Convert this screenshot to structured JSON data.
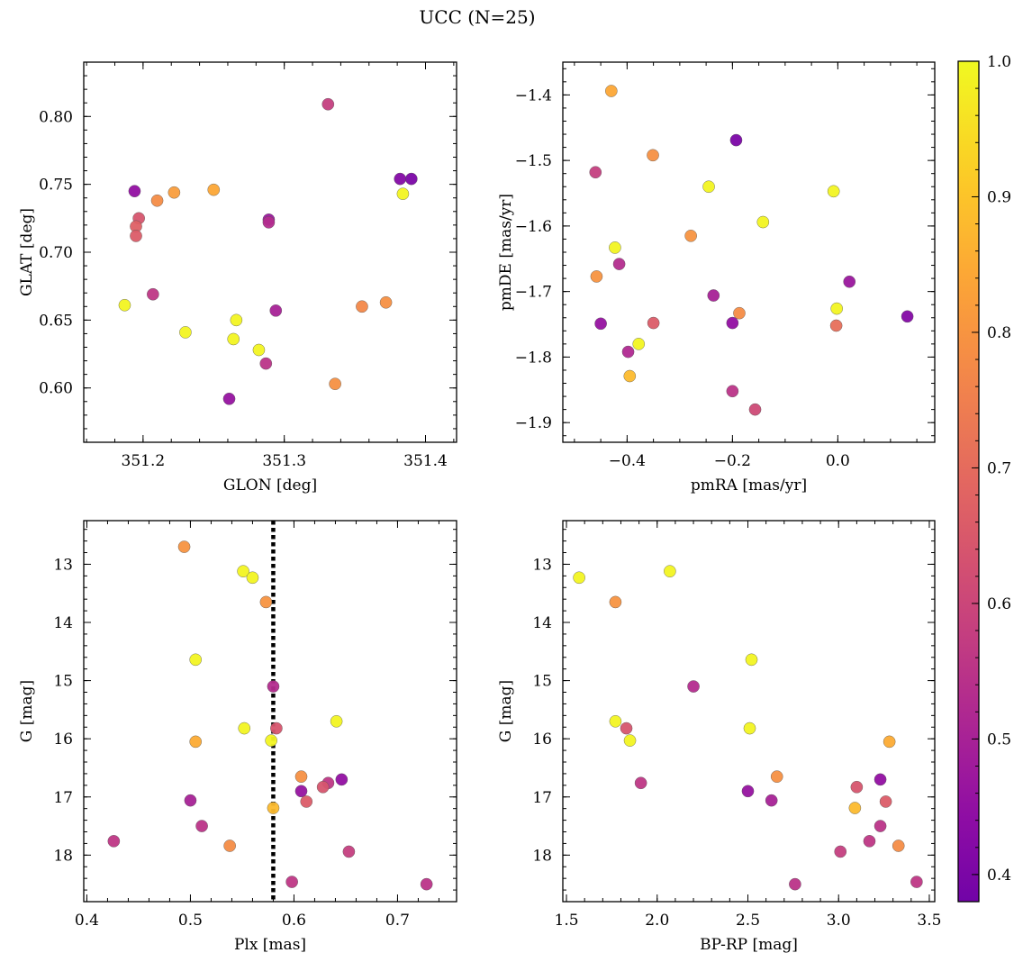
{
  "figure": {
    "suptitle": "UCC (N=25)"
  },
  "chart_data": [
    {
      "type": "scatter",
      "id": "ax1",
      "xlabel": "GLON [deg]",
      "ylabel": "GLAT [deg]",
      "xlim": [
        351.158,
        351.422
      ],
      "ylim": [
        0.56,
        0.84
      ],
      "xticks": [
        351.2,
        351.3,
        351.4
      ],
      "xtick_labels": [
        "351.2",
        "351.3",
        "351.4"
      ],
      "yticks": [
        0.6,
        0.65,
        0.7,
        0.75,
        0.8
      ],
      "ytick_labels": [
        "0.60",
        "0.65",
        "0.70",
        "0.75",
        "0.80"
      ],
      "x_minor_step": 0.02,
      "y_minor_step": 0.01,
      "y_inverted": false,
      "points": [
        {
          "x": 351.331,
          "y": 0.809,
          "c": 0.58
        },
        {
          "x": 351.382,
          "y": 0.754,
          "c": 0.42
        },
        {
          "x": 351.39,
          "y": 0.754,
          "c": 0.4
        },
        {
          "x": 351.384,
          "y": 0.743,
          "c": 0.99
        },
        {
          "x": 351.194,
          "y": 0.745,
          "c": 0.45
        },
        {
          "x": 351.25,
          "y": 0.746,
          "c": 0.84
        },
        {
          "x": 351.222,
          "y": 0.744,
          "c": 0.82
        },
        {
          "x": 351.21,
          "y": 0.738,
          "c": 0.78
        },
        {
          "x": 351.197,
          "y": 0.725,
          "c": 0.64
        },
        {
          "x": 351.289,
          "y": 0.724,
          "c": 0.47
        },
        {
          "x": 351.289,
          "y": 0.722,
          "c": 0.53
        },
        {
          "x": 351.195,
          "y": 0.719,
          "c": 0.67
        },
        {
          "x": 351.195,
          "y": 0.712,
          "c": 0.66
        },
        {
          "x": 351.207,
          "y": 0.669,
          "c": 0.56
        },
        {
          "x": 351.187,
          "y": 0.661,
          "c": 0.99
        },
        {
          "x": 351.372,
          "y": 0.663,
          "c": 0.79
        },
        {
          "x": 351.355,
          "y": 0.66,
          "c": 0.77
        },
        {
          "x": 351.294,
          "y": 0.657,
          "c": 0.5
        },
        {
          "x": 351.266,
          "y": 0.65,
          "c": 0.99
        },
        {
          "x": 351.23,
          "y": 0.641,
          "c": 0.99
        },
        {
          "x": 351.264,
          "y": 0.636,
          "c": 0.99
        },
        {
          "x": 351.282,
          "y": 0.628,
          "c": 0.99
        },
        {
          "x": 351.287,
          "y": 0.618,
          "c": 0.55
        },
        {
          "x": 351.336,
          "y": 0.603,
          "c": 0.79
        },
        {
          "x": 351.261,
          "y": 0.592,
          "c": 0.46
        }
      ]
    },
    {
      "type": "scatter",
      "id": "ax2",
      "xlabel": "pmRA [mas/yr]",
      "ylabel": "pmDE [mas/yr]",
      "xlim": [
        -0.522,
        0.184
      ],
      "ylim": [
        -1.93,
        -1.35
      ],
      "xticks": [
        -0.4,
        -0.2,
        0.0
      ],
      "xtick_labels": [
        "−0.4",
        "−0.2",
        "0.0"
      ],
      "yticks": [
        -1.9,
        -1.8,
        -1.7,
        -1.6,
        -1.5,
        -1.4
      ],
      "ytick_labels": [
        "−1.9",
        "−1.8",
        "−1.7",
        "−1.6",
        "−1.5",
        "−1.4"
      ],
      "x_minor_step": 0.05,
      "y_minor_step": 0.02,
      "y_inverted": false,
      "points": [
        {
          "x": -0.43,
          "y": -1.394,
          "c": 0.84
        },
        {
          "x": -0.193,
          "y": -1.469,
          "c": 0.4
        },
        {
          "x": -0.351,
          "y": -1.492,
          "c": 0.79
        },
        {
          "x": -0.46,
          "y": -1.518,
          "c": 0.58
        },
        {
          "x": -0.245,
          "y": -1.54,
          "c": 0.99
        },
        {
          "x": -0.008,
          "y": -1.547,
          "c": 0.99
        },
        {
          "x": -0.142,
          "y": -1.594,
          "c": 0.99
        },
        {
          "x": -0.279,
          "y": -1.615,
          "c": 0.8
        },
        {
          "x": -0.423,
          "y": -1.633,
          "c": 0.99
        },
        {
          "x": -0.415,
          "y": -1.658,
          "c": 0.53
        },
        {
          "x": -0.458,
          "y": -1.677,
          "c": 0.8
        },
        {
          "x": 0.022,
          "y": -1.685,
          "c": 0.47
        },
        {
          "x": -0.236,
          "y": -1.706,
          "c": 0.5
        },
        {
          "x": -0.002,
          "y": -1.726,
          "c": 0.99
        },
        {
          "x": -0.187,
          "y": -1.733,
          "c": 0.78
        },
        {
          "x": 0.132,
          "y": -1.738,
          "c": 0.42
        },
        {
          "x": -0.45,
          "y": -1.749,
          "c": 0.46
        },
        {
          "x": -0.35,
          "y": -1.748,
          "c": 0.66
        },
        {
          "x": -0.2,
          "y": -1.748,
          "c": 0.45
        },
        {
          "x": -0.003,
          "y": -1.752,
          "c": 0.71
        },
        {
          "x": -0.378,
          "y": -1.78,
          "c": 0.99
        },
        {
          "x": -0.398,
          "y": -1.792,
          "c": 0.52
        },
        {
          "x": -0.395,
          "y": -1.829,
          "c": 0.88
        },
        {
          "x": -0.2,
          "y": -1.852,
          "c": 0.55
        },
        {
          "x": -0.157,
          "y": -1.88,
          "c": 0.61
        }
      ]
    },
    {
      "type": "scatter",
      "id": "ax3",
      "xlabel": "Plx [mas]",
      "ylabel": "G [mag]",
      "xlim": [
        0.397,
        0.757
      ],
      "ylim": [
        18.8,
        12.25
      ],
      "xticks": [
        0.4,
        0.5,
        0.6,
        0.7
      ],
      "xtick_labels": [
        "0.4",
        "0.5",
        "0.6",
        "0.7"
      ],
      "yticks": [
        13,
        14,
        15,
        16,
        17,
        18
      ],
      "ytick_labels": [
        "13",
        "14",
        "15",
        "16",
        "17",
        "18"
      ],
      "x_minor_step": 0.02,
      "y_minor_step": 0.2,
      "y_inverted": true,
      "vline": {
        "x": 0.58,
        "style": "dotted"
      },
      "points": [
        {
          "x": 0.494,
          "y": 12.7,
          "c": 0.8
        },
        {
          "x": 0.551,
          "y": 13.12,
          "c": 0.99
        },
        {
          "x": 0.56,
          "y": 13.23,
          "c": 0.99
        },
        {
          "x": 0.573,
          "y": 13.65,
          "c": 0.8
        },
        {
          "x": 0.505,
          "y": 14.64,
          "c": 0.99
        },
        {
          "x": 0.58,
          "y": 15.1,
          "c": 0.53
        },
        {
          "x": 0.641,
          "y": 15.7,
          "c": 0.99
        },
        {
          "x": 0.552,
          "y": 15.82,
          "c": 0.99
        },
        {
          "x": 0.583,
          "y": 15.82,
          "c": 0.64
        },
        {
          "x": 0.505,
          "y": 16.05,
          "c": 0.85
        },
        {
          "x": 0.578,
          "y": 16.03,
          "c": 0.99
        },
        {
          "x": 0.607,
          "y": 16.65,
          "c": 0.79
        },
        {
          "x": 0.646,
          "y": 16.7,
          "c": 0.45
        },
        {
          "x": 0.633,
          "y": 16.76,
          "c": 0.56
        },
        {
          "x": 0.628,
          "y": 16.83,
          "c": 0.64
        },
        {
          "x": 0.607,
          "y": 16.9,
          "c": 0.46
        },
        {
          "x": 0.5,
          "y": 17.06,
          "c": 0.5
        },
        {
          "x": 0.612,
          "y": 17.08,
          "c": 0.66
        },
        {
          "x": 0.58,
          "y": 17.19,
          "c": 0.88
        },
        {
          "x": 0.511,
          "y": 17.5,
          "c": 0.55
        },
        {
          "x": 0.426,
          "y": 17.76,
          "c": 0.56
        },
        {
          "x": 0.538,
          "y": 17.84,
          "c": 0.78
        },
        {
          "x": 0.653,
          "y": 17.94,
          "c": 0.58
        },
        {
          "x": 0.598,
          "y": 18.46,
          "c": 0.56
        },
        {
          "x": 0.728,
          "y": 18.5,
          "c": 0.55
        }
      ]
    },
    {
      "type": "scatter",
      "id": "ax4",
      "xlabel": "BP-RP [mag]",
      "ylabel": "G [mag]",
      "xlim": [
        1.48,
        3.53
      ],
      "ylim": [
        18.8,
        12.25
      ],
      "xticks": [
        1.5,
        2.0,
        2.5,
        3.0,
        3.5
      ],
      "xtick_labels": [
        "1.5",
        "2.0",
        "2.5",
        "3.0",
        "3.5"
      ],
      "yticks": [
        13,
        14,
        15,
        16,
        17,
        18
      ],
      "ytick_labels": [
        "13",
        "14",
        "15",
        "16",
        "17",
        "18"
      ],
      "x_minor_step": 0.1,
      "y_minor_step": 0.2,
      "y_inverted": true,
      "points": [
        {
          "x": 1.57,
          "y": 13.23,
          "c": 0.99
        },
        {
          "x": 2.07,
          "y": 13.12,
          "c": 0.99
        },
        {
          "x": 1.77,
          "y": 13.65,
          "c": 0.8
        },
        {
          "x": 2.52,
          "y": 14.64,
          "c": 0.99
        },
        {
          "x": 2.2,
          "y": 15.1,
          "c": 0.53
        },
        {
          "x": 1.77,
          "y": 15.7,
          "c": 0.99
        },
        {
          "x": 1.83,
          "y": 15.82,
          "c": 0.64
        },
        {
          "x": 2.51,
          "y": 15.82,
          "c": 0.99
        },
        {
          "x": 1.85,
          "y": 16.03,
          "c": 0.99
        },
        {
          "x": 3.28,
          "y": 16.05,
          "c": 0.85
        },
        {
          "x": 2.66,
          "y": 16.65,
          "c": 0.79
        },
        {
          "x": 3.23,
          "y": 16.7,
          "c": 0.45
        },
        {
          "x": 1.91,
          "y": 16.76,
          "c": 0.56
        },
        {
          "x": 3.1,
          "y": 16.83,
          "c": 0.64
        },
        {
          "x": 2.5,
          "y": 16.9,
          "c": 0.46
        },
        {
          "x": 2.63,
          "y": 17.06,
          "c": 0.5
        },
        {
          "x": 3.26,
          "y": 17.08,
          "c": 0.66
        },
        {
          "x": 3.09,
          "y": 17.19,
          "c": 0.88
        },
        {
          "x": 3.23,
          "y": 17.5,
          "c": 0.55
        },
        {
          "x": 3.17,
          "y": 17.76,
          "c": 0.56
        },
        {
          "x": 3.33,
          "y": 17.84,
          "c": 0.78
        },
        {
          "x": 3.01,
          "y": 17.94,
          "c": 0.58
        },
        {
          "x": 3.43,
          "y": 18.46,
          "c": 0.56
        },
        {
          "x": 2.76,
          "y": 18.5,
          "c": 0.55
        }
      ]
    }
  ],
  "colorbar": {
    "colormap": "plasma",
    "vmin": 0.38,
    "vmax": 1.0,
    "ticks": [
      0.4,
      0.5,
      0.6,
      0.7,
      0.8,
      0.9,
      1.0
    ],
    "tick_labels": [
      "0.4",
      "0.5",
      "0.6",
      "0.7",
      "0.8",
      "0.9",
      "1.0"
    ],
    "minor_step": 0.02
  }
}
